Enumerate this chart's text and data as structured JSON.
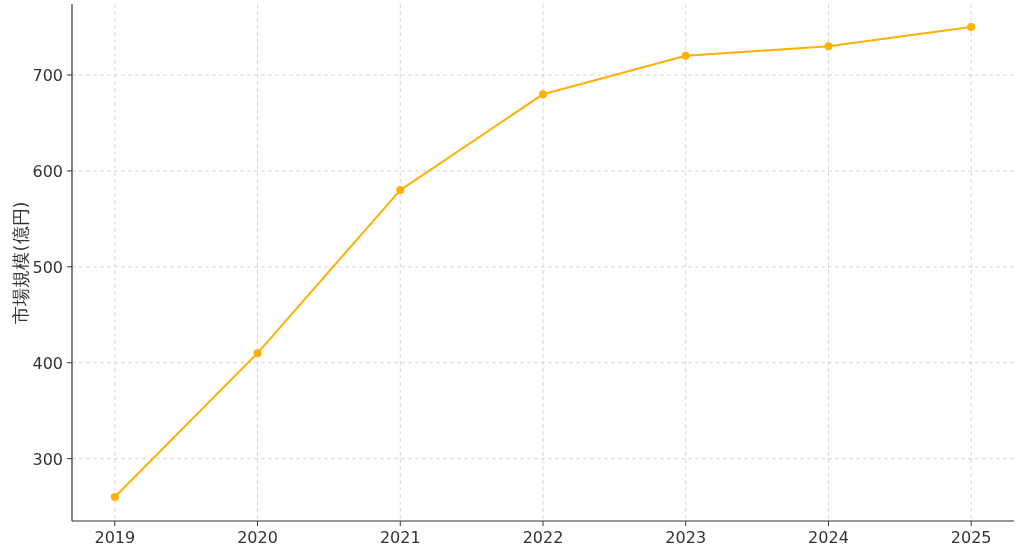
{
  "chart_data": {
    "type": "line",
    "ylabel": "市場規模(億円)",
    "categories": [
      "2019",
      "2020",
      "2021",
      "2022",
      "2023",
      "2024",
      "2025"
    ],
    "series": [
      {
        "color": "#ffb000",
        "values": [
          260,
          410,
          580,
          680,
          720,
          730,
          750
        ]
      }
    ],
    "ylim": [
      235,
      774
    ],
    "yticks": [
      300,
      400,
      500,
      600,
      700
    ],
    "grid": true,
    "marker": "circle",
    "line_style": "solid"
  }
}
